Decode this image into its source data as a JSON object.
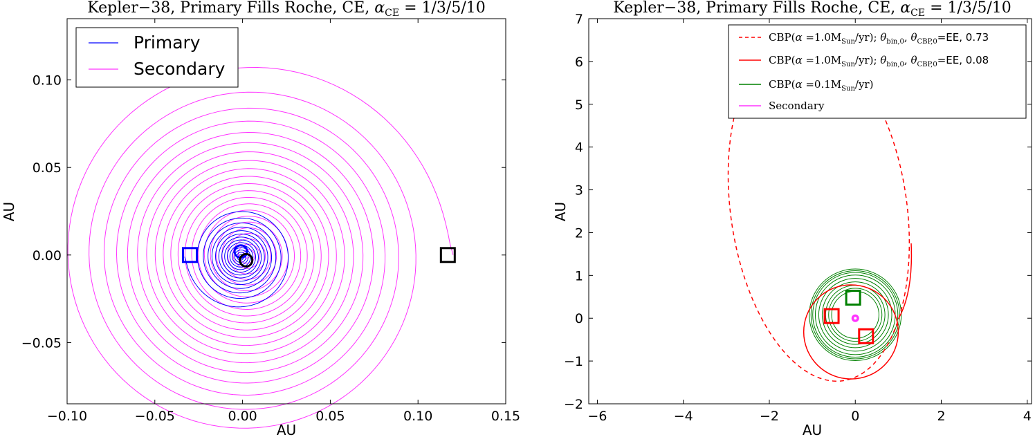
{
  "colors": {
    "primary": "#0000ff",
    "secondary": "#ff33ff",
    "red": "#ff0000",
    "green": "#008000",
    "black": "#000000"
  },
  "chart_data": [
    {
      "type": "line",
      "title": "Kepler−38, Primary Fills Roche, CE, α_CE = 1/3/5/10",
      "xlabel": "AU",
      "ylabel": "AU",
      "xlim": [
        -0.1,
        0.15
      ],
      "ylim": [
        -0.085,
        0.135
      ],
      "xticks": [
        -0.1,
        -0.05,
        0.0,
        0.05,
        0.1,
        0.15
      ],
      "xtick_labels": [
        "−0.10",
        "−0.05",
        "0.00",
        "0.05",
        "0.10",
        "0.15"
      ],
      "yticks": [
        -0.05,
        0.0,
        0.05,
        0.1
      ],
      "ytick_labels": [
        "−0.05",
        "0.00",
        "0.05",
        "0.10"
      ],
      "legend_loc": "top-left",
      "series": [
        {
          "name": "Primary",
          "color": "#0000ff",
          "spiral": {
            "r_start": 0.032,
            "r_end": 0.001,
            "turns": 14,
            "x_center": -0.001,
            "y_center": -0.001,
            "start_angle_deg": 180
          }
        },
        {
          "name": "Secondary",
          "color": "#ff33ff",
          "spiral": {
            "r_start": 0.117,
            "r_end": 0.001,
            "turns": 22,
            "x_center": 0.003,
            "y_center": 0.0,
            "start_angle_deg": 0
          }
        }
      ],
      "markers": [
        {
          "kind": "square",
          "x": -0.03,
          "y": 0.0,
          "color": "#0000ff"
        },
        {
          "kind": "square",
          "x": 0.117,
          "y": 0.0,
          "color": "#000000"
        },
        {
          "kind": "circle",
          "x": -0.001,
          "y": 0.002,
          "color": "#0000ff"
        },
        {
          "kind": "circle",
          "x": 0.002,
          "y": -0.003,
          "color": "#000000"
        }
      ]
    },
    {
      "type": "line",
      "title": "Kepler−38, Primary Fills Roche, CE, α_CE = 1/3/5/10",
      "xlabel": "AU",
      "ylabel": "AU",
      "xlim": [
        -6.2,
        4.1
      ],
      "ylim": [
        -2,
        7
      ],
      "xticks": [
        -6,
        -4,
        -2,
        0,
        2,
        4
      ],
      "xtick_labels": [
        "−6",
        "−4",
        "−2",
        "0",
        "2",
        "4"
      ],
      "yticks": [
        -2,
        -1,
        0,
        1,
        2,
        3,
        4,
        5,
        6,
        7
      ],
      "ytick_labels": [
        "−2",
        "−1",
        "0",
        "1",
        "2",
        "3",
        "4",
        "5",
        "6",
        "7"
      ],
      "legend_loc": "top-right",
      "legend": [
        {
          "label": "CBP(α = 1.0M_Sun/yr); θ_bin,0, θ_CBP,0 = EE, 0.73",
          "color": "#ff0000",
          "dashed": true
        },
        {
          "label": "CBP(α = 1.0M_Sun/yr); θ_bin,0, θ_CBP,0 = EE, 0.08",
          "color": "#ff0000",
          "dashed": false
        },
        {
          "label": "CBP(α = 0.1M_Sun/yr)",
          "color": "#008000",
          "dashed": false
        },
        {
          "label": "Secondary",
          "color": "#ff33ff",
          "dashed": false
        }
      ],
      "series": [
        {
          "name": "CBP EE 0.73 (dashed)",
          "color": "#ff0000",
          "ellipse": {
            "cx": -0.85,
            "cy": 2.55,
            "a": 2.05,
            "b": 4.05,
            "rot_deg": 8,
            "t_start_deg": 95,
            "t_end_deg": 405
          }
        },
        {
          "name": "CBP EE 0.08",
          "color": "#ff0000",
          "ring": {
            "cx": -0.1,
            "cy": -0.32,
            "r": 1.1,
            "tail_to": [
              1.3,
              1.75
            ]
          }
        },
        {
          "name": "CBP 0.1",
          "color": "#008000",
          "rings": {
            "cx": 0.0,
            "cy": 0.08,
            "radii": [
              1.07,
              1.03,
              0.99,
              0.93,
              0.85,
              0.77,
              0.69,
              0.62,
              0.55
            ]
          }
        },
        {
          "name": "Secondary",
          "color": "#ff33ff",
          "point": {
            "x": 0.0,
            "y": 0.0
          }
        }
      ],
      "markers": [
        {
          "kind": "square",
          "x": -0.55,
          "y": 0.05,
          "color": "#ff0000"
        },
        {
          "kind": "square",
          "x": 0.25,
          "y": -0.42,
          "color": "#ff0000"
        },
        {
          "kind": "square",
          "x": -0.05,
          "y": 0.48,
          "color": "#008000"
        }
      ]
    }
  ]
}
